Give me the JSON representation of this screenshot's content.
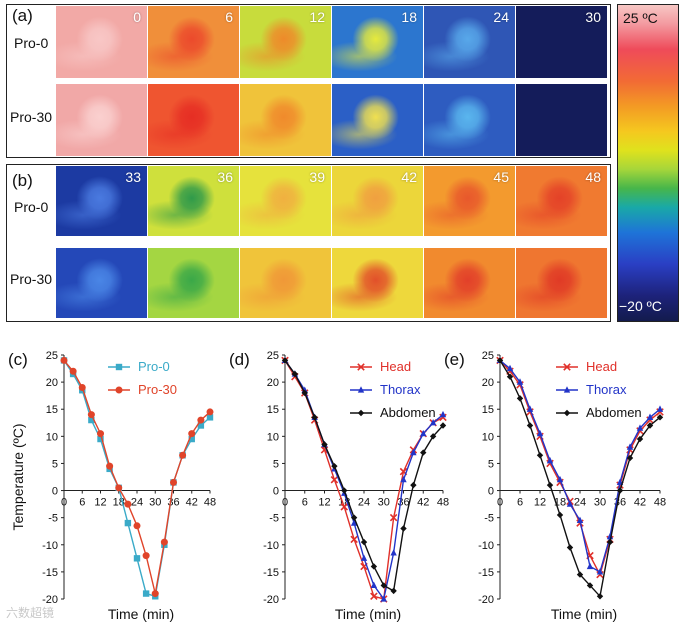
{
  "thermal": {
    "panel_a": {
      "letter": "(a)",
      "rows": [
        "Pro-0",
        "Pro-30"
      ],
      "times": [
        "0",
        "6",
        "12",
        "18",
        "24",
        "30"
      ],
      "colors": [
        [
          "#f2a9a6",
          "#f08f3a",
          "#c8dc3c",
          "#2c76cf",
          "#2f56b5",
          "#141c5a"
        ],
        [
          "#f1a8a7",
          "#ef5530",
          "#f0c33a",
          "#2b5fc6",
          "#2e5cc0",
          "#141c5a"
        ]
      ],
      "accents": [
        [
          "#f8c7c6",
          "#ec4a2c",
          "#ee8a2a",
          "#e6ea3c",
          "#58a8ea",
          "#141c5a"
        ],
        [
          "#fad0cf",
          "#e62e24",
          "#f08a2c",
          "#f0e050",
          "#5ab6ee",
          "#141c5a"
        ]
      ]
    },
    "panel_b": {
      "letter": "(b)",
      "rows": [
        "Pro-0",
        "Pro-30"
      ],
      "times": [
        "33",
        "36",
        "39",
        "42",
        "45",
        "48"
      ],
      "colors": [
        [
          "#1c3aa2",
          "#cfe03c",
          "#e6e23c",
          "#ecd63a",
          "#f39a2e",
          "#f07a30"
        ],
        [
          "#2448b8",
          "#a4d642",
          "#f0c43a",
          "#eed83c",
          "#f18a2e",
          "#ef7630"
        ]
      ],
      "accents": [
        [
          "#4a7ae0",
          "#2f9a4a",
          "#f0b040",
          "#f0a040",
          "#e8582c",
          "#e44228"
        ],
        [
          "#4a86e6",
          "#3aa848",
          "#f09838",
          "#e2502a",
          "#e2402a",
          "#e03a26"
        ]
      ]
    }
  },
  "colorbar": {
    "max_label": "25 ºC",
    "min_label": "−20 ºC"
  },
  "watermark": "六数超镜",
  "chart_data": [
    {
      "type": "line",
      "letter": "(c)",
      "title": "",
      "xlabel": "Time (min)",
      "ylabel": "Temperature (ºC)",
      "xlim": [
        0,
        48
      ],
      "ylim": [
        -20,
        25
      ],
      "xticks": [
        "0",
        "6",
        "12",
        "18",
        "24",
        "30",
        "36",
        "42",
        "48"
      ],
      "yticks": [
        "-20",
        "-15",
        "-10",
        "-5",
        "0",
        "5",
        "10",
        "15",
        "20",
        "25"
      ],
      "legend_position": "top-right",
      "x": [
        0,
        3,
        6,
        9,
        12,
        15,
        18,
        21,
        24,
        27,
        30,
        33,
        36,
        39,
        42,
        45,
        48
      ],
      "series": [
        {
          "name": "Pro-0",
          "color": "#3aaac8",
          "marker": "square",
          "values": [
            24,
            21.5,
            18.5,
            13,
            9.5,
            4,
            0.5,
            -6,
            -12.5,
            -19,
            -19.5,
            -10,
            1.5,
            6.5,
            9.5,
            12,
            13.5
          ]
        },
        {
          "name": "Pro-30",
          "color": "#e0442a",
          "marker": "circle",
          "values": [
            24,
            22,
            19,
            14,
            10.5,
            4.5,
            0.5,
            -2.5,
            -6.5,
            -12,
            -19,
            -9.5,
            1.5,
            6.5,
            10.5,
            13,
            14.5
          ]
        }
      ]
    },
    {
      "type": "line",
      "letter": "(d)",
      "title": "",
      "xlabel": "Time (min)",
      "ylabel": "",
      "xlim": [
        0,
        48
      ],
      "ylim": [
        -20,
        25
      ],
      "xticks": [
        "0",
        "6",
        "12",
        "18",
        "24",
        "30",
        "36",
        "42",
        "48"
      ],
      "yticks": [
        "-20",
        "-15",
        "-10",
        "-5",
        "0",
        "5",
        "10",
        "15",
        "20",
        "25"
      ],
      "legend_position": "top-right",
      "x": [
        0,
        3,
        6,
        9,
        12,
        15,
        18,
        21,
        24,
        27,
        30,
        33,
        36,
        39,
        42,
        45,
        48
      ],
      "series": [
        {
          "name": "Head",
          "color": "#e0302a",
          "marker": "x",
          "values": [
            24,
            21,
            18,
            13,
            7.5,
            2,
            -3,
            -9,
            -14,
            -19.5,
            -20,
            -5,
            3.5,
            7.5,
            10.5,
            12.5,
            13.5
          ]
        },
        {
          "name": "Thorax",
          "color": "#2234c8",
          "marker": "triangle",
          "values": [
            24,
            21.5,
            18.5,
            13.5,
            8.5,
            4,
            -0.5,
            -6,
            -12.5,
            -17.5,
            -20,
            -11.5,
            2,
            7,
            10.5,
            12.5,
            14
          ]
        },
        {
          "name": "Abdomen",
          "color": "#111111",
          "marker": "diamond",
          "values": [
            24,
            21.5,
            18,
            13.5,
            8.5,
            4.5,
            0,
            -5,
            -9.5,
            -14,
            -17.5,
            -18.5,
            -7,
            1,
            7,
            10,
            12
          ]
        }
      ]
    },
    {
      "type": "line",
      "letter": "(e)",
      "title": "",
      "xlabel": "Time (min)",
      "ylabel": "",
      "xlim": [
        0,
        48
      ],
      "ylim": [
        -20,
        25
      ],
      "xticks": [
        "0",
        "6",
        "12",
        "18",
        "24",
        "30",
        "36",
        "42",
        "48"
      ],
      "yticks": [
        "-20",
        "-15",
        "-10",
        "-5",
        "0",
        "5",
        "10",
        "15",
        "20",
        "25"
      ],
      "legend_position": "top-right",
      "x": [
        0,
        3,
        6,
        9,
        12,
        15,
        18,
        21,
        24,
        27,
        30,
        33,
        36,
        39,
        42,
        45,
        48
      ],
      "series": [
        {
          "name": "Head",
          "color": "#e0302a",
          "marker": "x",
          "values": [
            24,
            22,
            19.5,
            14.5,
            10,
            5,
            1.5,
            -2,
            -6,
            -12,
            -15.5,
            -9,
            1,
            7.5,
            11,
            13,
            14.5
          ]
        },
        {
          "name": "Thorax",
          "color": "#2234c8",
          "marker": "triangle",
          "values": [
            24,
            22.5,
            20,
            15,
            10.5,
            5.5,
            2,
            -2.5,
            -5.5,
            -14,
            -15,
            -8.5,
            1.5,
            8,
            11.5,
            13.5,
            15
          ]
        },
        {
          "name": "Abdomen",
          "color": "#111111",
          "marker": "diamond",
          "values": [
            24,
            21,
            17,
            12,
            6.5,
            1,
            -4.5,
            -10.5,
            -15.5,
            -17.5,
            -19.5,
            -9.5,
            0,
            6,
            9.5,
            12,
            13.5
          ]
        }
      ]
    }
  ]
}
